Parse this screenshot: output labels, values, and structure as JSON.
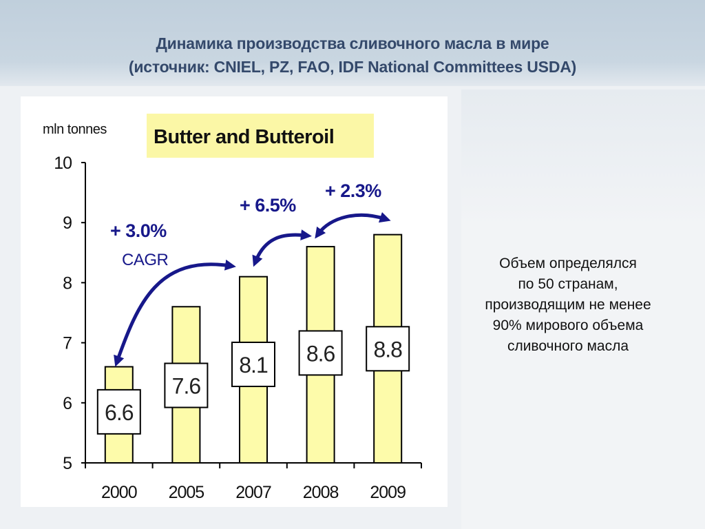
{
  "slide": {
    "title_line1": "Динамика производства сливочного масла в мире",
    "title_line2": "(источник: CNIEL, PZ, FAO, IDF National Committees USDA)",
    "note_lines": [
      "Объем определялся",
      "по 50 странам,",
      "производящим не менее",
      "90% мирового объема",
      "сливочного масла"
    ]
  },
  "chart_data": {
    "type": "bar",
    "title": "Butter and Butteroil",
    "ylabel": "mln tonnes",
    "xlabel": "",
    "categories": [
      "2000",
      "2005",
      "2007",
      "2008",
      "2009"
    ],
    "values": [
      6.6,
      7.6,
      8.1,
      8.6,
      8.8
    ],
    "value_labels": [
      "6.6",
      "7.6",
      "8.1",
      "8.6",
      "8.8"
    ],
    "ylim": [
      5,
      10
    ],
    "yticks": [
      "5",
      "6",
      "7",
      "8",
      "9",
      "10"
    ],
    "grid": false,
    "annotations": [
      {
        "text": "+ 3.0%",
        "subtext": "CAGR",
        "from": "2000",
        "to": "2007"
      },
      {
        "text": "+ 6.5%",
        "from": "2007",
        "to": "2008"
      },
      {
        "text": "+ 2.3%",
        "from": "2008",
        "to": "2009"
      }
    ],
    "colors": {
      "bar": "#fdfbaa",
      "title_bg": "#fbf7a6",
      "arrow": "#17188a"
    }
  }
}
